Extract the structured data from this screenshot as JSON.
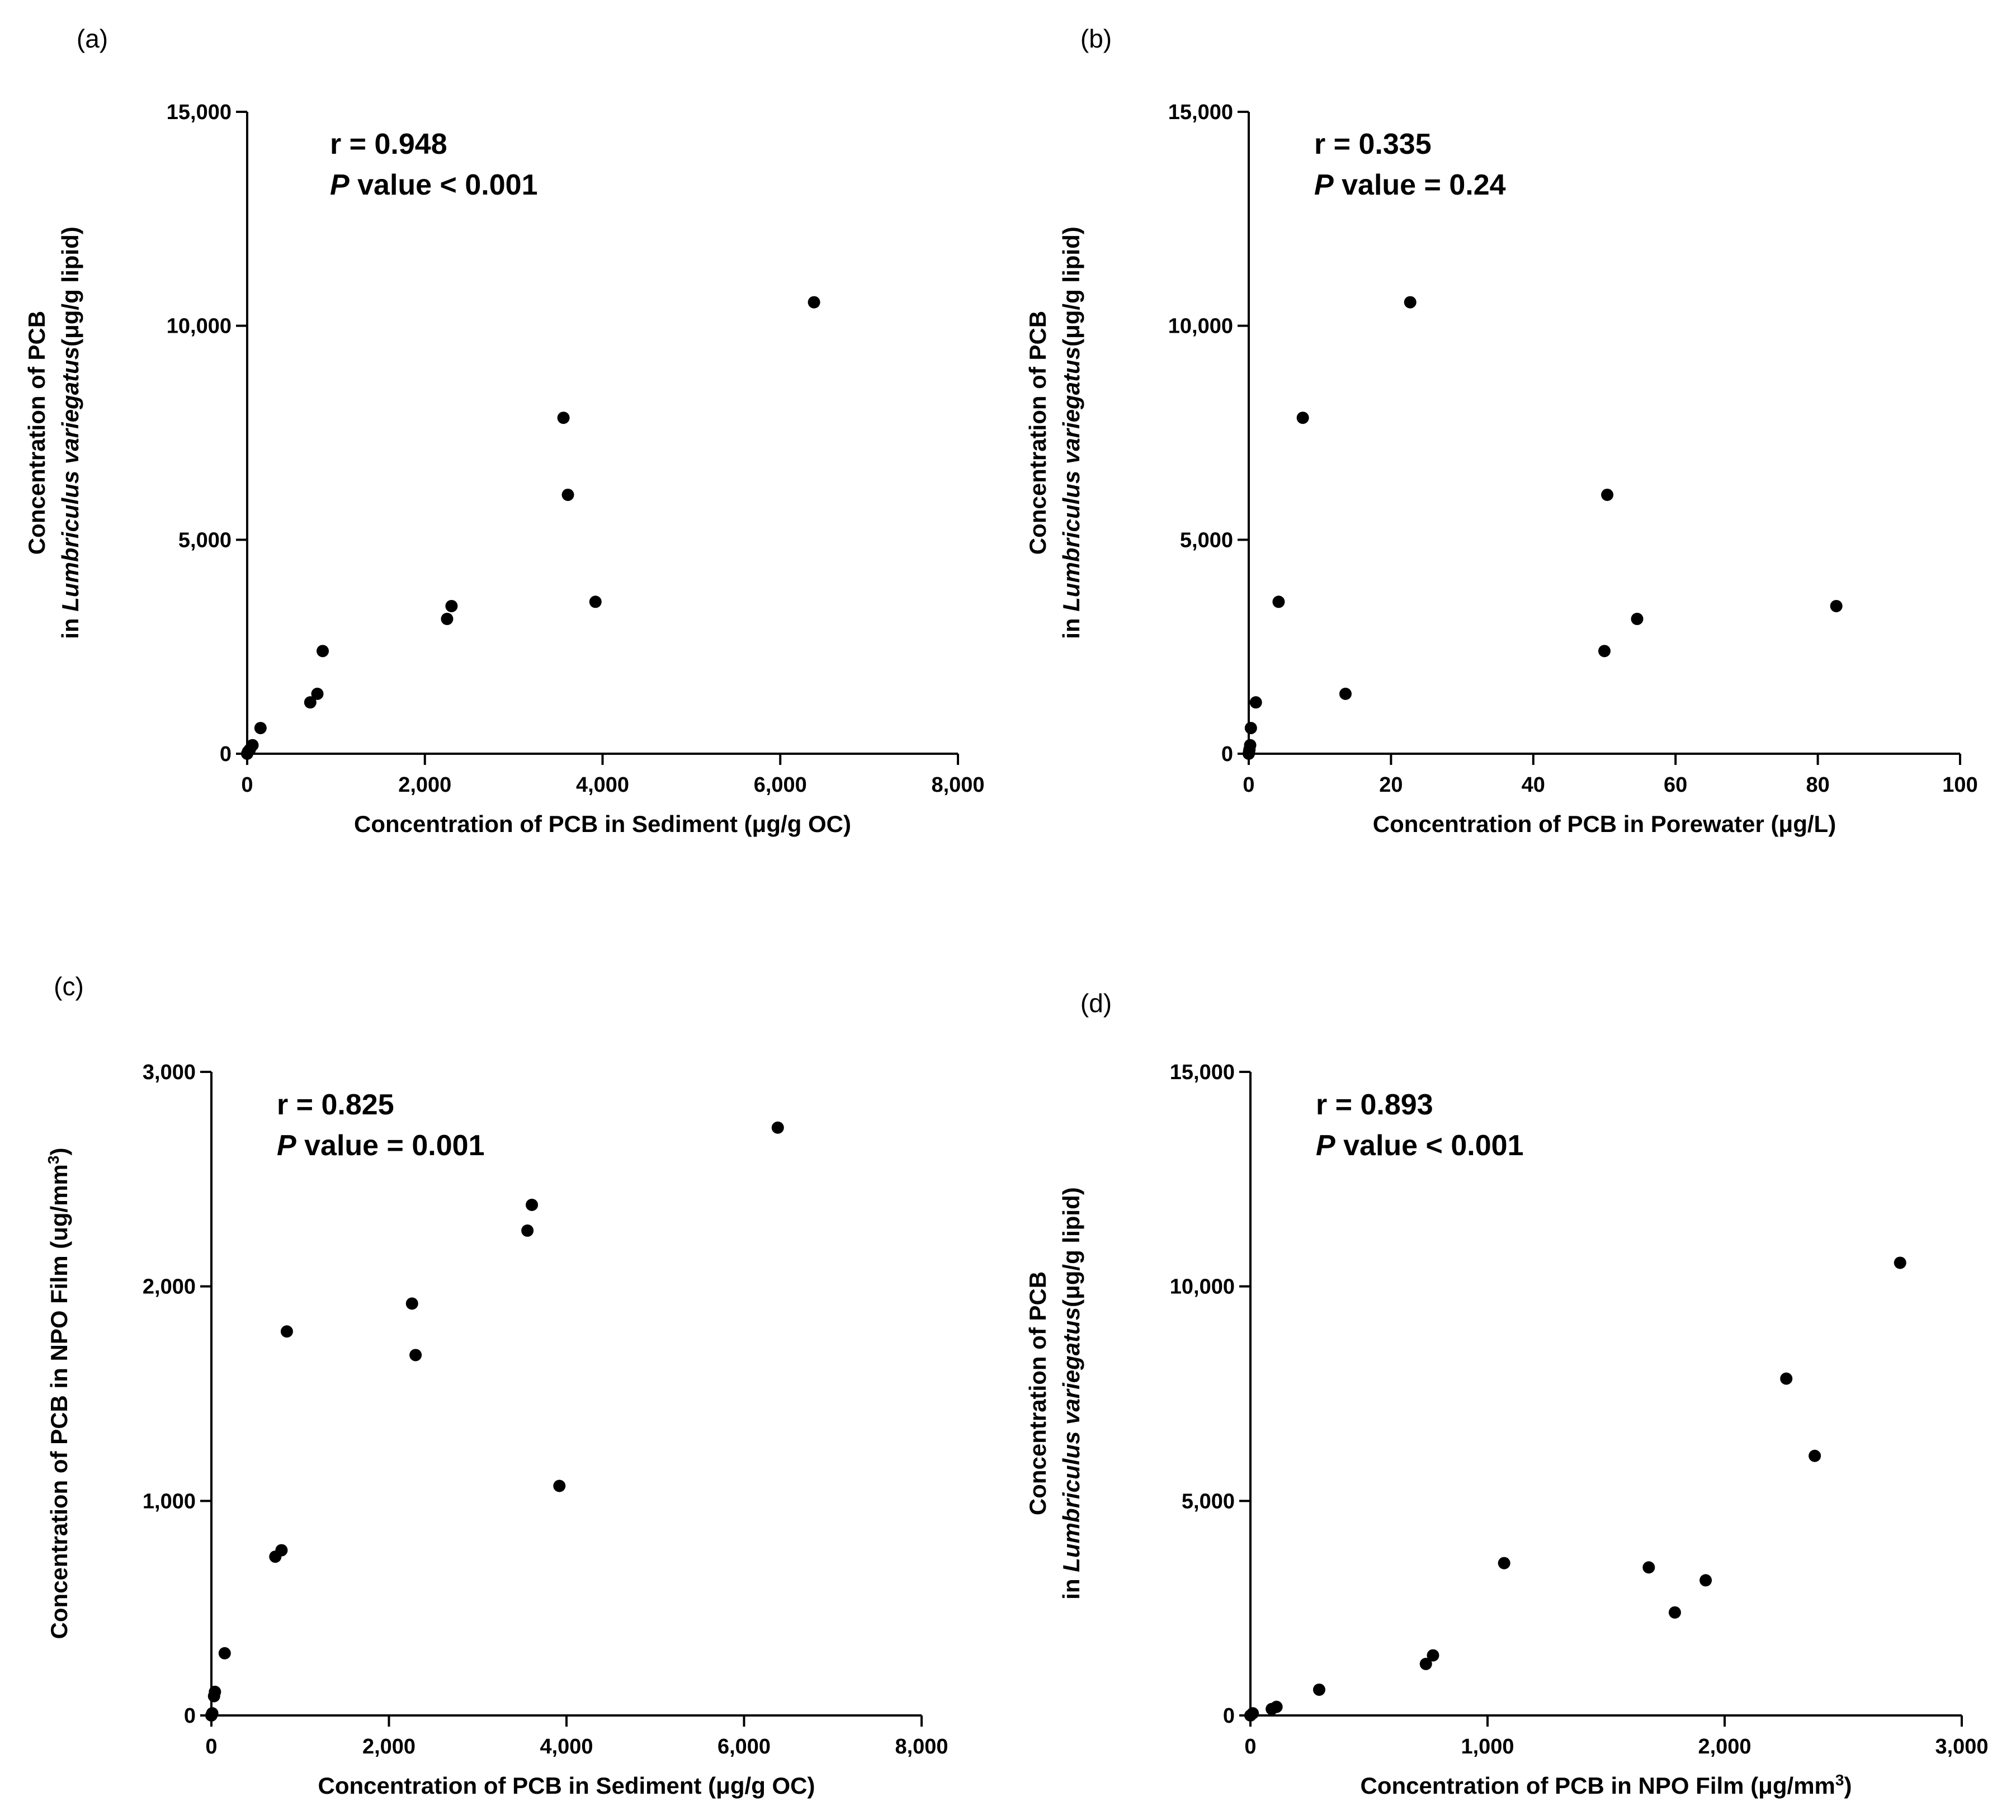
{
  "chart_data": [
    {
      "type": "scatter",
      "panel_label": "(a)",
      "xlabel": "Concentration of PCB in Sediment (μg/g OC)",
      "ylabel_line1": "Concentration of PCB",
      "ylabel_prefix": "in ",
      "ylabel_italic": "Lumbriculus variegatus",
      "ylabel_suffix": "(μg/g lipid)",
      "xlim": [
        0,
        8000
      ],
      "ylim": [
        0,
        15000
      ],
      "xticks": [
        0,
        2000,
        4000,
        6000,
        8000
      ],
      "xtick_labels": [
        "0",
        "2,000",
        "4,000",
        "6,000",
        "8,000"
      ],
      "yticks": [
        0,
        5000,
        10000,
        15000
      ],
      "ytick_labels": [
        "0",
        "5,000",
        "10,000",
        "15,000"
      ],
      "stat_r": "r = 0.948",
      "stat_p_italic": "P",
      "stat_p_rest": " value < 0.001",
      "x": [
        6380,
        3560,
        3610,
        3920,
        2300,
        2250,
        850,
        790,
        710,
        150,
        60,
        30,
        10,
        0
      ],
      "y": [
        10550,
        7850,
        6050,
        3550,
        3450,
        3150,
        2400,
        1400,
        1200,
        600,
        200,
        100,
        50,
        0
      ]
    },
    {
      "type": "scatter",
      "panel_label": "(b)",
      "xlabel": "Concentration of PCB in Porewater (μg/L)",
      "ylabel_line1": "Concentration of PCB",
      "ylabel_prefix": "in ",
      "ylabel_italic": "Lumbriculus variegatus",
      "ylabel_suffix": "(μg/g lipid)",
      "xlim": [
        0,
        100
      ],
      "ylim": [
        0,
        15000
      ],
      "xticks": [
        0,
        20,
        40,
        60,
        80,
        100
      ],
      "xtick_labels": [
        "0",
        "20",
        "40",
        "60",
        "80",
        "100"
      ],
      "yticks": [
        0,
        5000,
        10000,
        15000
      ],
      "ytick_labels": [
        "0",
        "5,000",
        "10,000",
        "15,000"
      ],
      "stat_r": "r = 0.335",
      "stat_p_italic": "P",
      "stat_p_rest": " value = 0.24",
      "x": [
        22.7,
        7.6,
        50.4,
        4.2,
        82.6,
        54.6,
        50.0,
        13.6,
        1.0,
        0.3,
        0.2,
        0.1,
        0.05,
        0
      ],
      "y": [
        10550,
        7850,
        6050,
        3550,
        3450,
        3150,
        2400,
        1400,
        1200,
        600,
        200,
        100,
        50,
        0
      ]
    },
    {
      "type": "scatter",
      "panel_label": "(c)",
      "xlabel": "Concentration of PCB in Sediment (μg/g OC)",
      "ylabel_line1": "Concentration of PCB in NPO Film (ug/mm",
      "ylabel_sup": "3",
      "ylabel_line1_end": ")",
      "xlim": [
        0,
        8000
      ],
      "ylim": [
        0,
        3000
      ],
      "xticks": [
        0,
        2000,
        4000,
        6000,
        8000
      ],
      "xtick_labels": [
        "0",
        "2,000",
        "4,000",
        "6,000",
        "8,000"
      ],
      "yticks": [
        0,
        1000,
        2000,
        3000
      ],
      "ytick_labels": [
        "0",
        "1,000",
        "2,000",
        "3,000"
      ],
      "stat_r": "r = 0.825",
      "stat_p_italic": "P",
      "stat_p_rest": " value = 0.001",
      "x": [
        6380,
        3610,
        3560,
        2260,
        2300,
        850,
        790,
        720,
        3920,
        150,
        40,
        30,
        10,
        0
      ],
      "y": [
        2740,
        2380,
        2260,
        1920,
        1680,
        1790,
        770,
        740,
        1070,
        290,
        110,
        90,
        10,
        0
      ]
    },
    {
      "type": "scatter",
      "panel_label": "(d)",
      "xlabel": "Concentration of PCB in NPO Film (μg/mm",
      "xlabel_sup": "3",
      "xlabel_end": ")",
      "ylabel_line1": "Concentration of PCB",
      "ylabel_prefix": "in ",
      "ylabel_italic": "Lumbriculus variegatus",
      "ylabel_suffix": "(μg/g lipid)",
      "xlim": [
        0,
        3000
      ],
      "ylim": [
        0,
        15000
      ],
      "xticks": [
        0,
        1000,
        2000,
        3000
      ],
      "xtick_labels": [
        "0",
        "1,000",
        "2,000",
        "3,000"
      ],
      "yticks": [
        0,
        5000,
        10000,
        15000
      ],
      "ytick_labels": [
        "0",
        "5,000",
        "10,000",
        "15,000"
      ],
      "stat_r": "r = 0.893",
      "stat_p_italic": "P",
      "stat_p_rest": " value < 0.001",
      "x": [
        2740,
        2260,
        2380,
        1070,
        1680,
        1920,
        1790,
        770,
        740,
        290,
        110,
        90,
        10,
        0
      ],
      "y": [
        10550,
        7850,
        6050,
        3550,
        3450,
        3150,
        2400,
        1400,
        1200,
        600,
        200,
        150,
        50,
        0
      ]
    }
  ]
}
